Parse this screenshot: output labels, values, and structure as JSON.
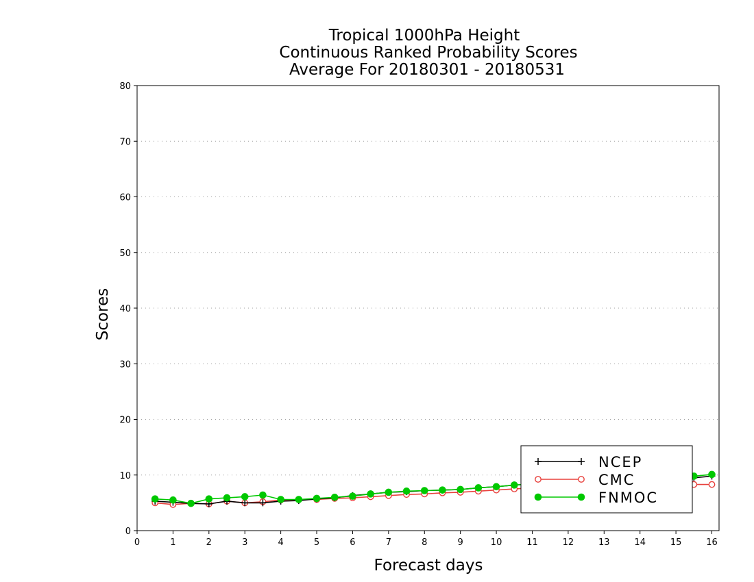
{
  "chart_data": {
    "type": "line",
    "title": [
      "Tropical 1000hPa Height",
      "Continuous Ranked Probability Scores",
      "Average For 20180301 - 20180531"
    ],
    "xlabel": "Forecast days",
    "ylabel": "Scores",
    "xlim": [
      0,
      16.2
    ],
    "ylim": [
      0,
      80
    ],
    "xticks": [
      0,
      1,
      2,
      3,
      4,
      5,
      6,
      7,
      8,
      9,
      10,
      11,
      12,
      13,
      14,
      15,
      16
    ],
    "yticks": [
      0,
      10,
      20,
      30,
      40,
      50,
      60,
      70,
      80
    ],
    "grid": "horizontal dotted",
    "legend_position": "bottom-right",
    "x": [
      0.5,
      1,
      1.5,
      2,
      2.5,
      3,
      3.5,
      4,
      4.5,
      5,
      5.5,
      6,
      6.5,
      7,
      7.5,
      8,
      8.5,
      9,
      9.5,
      10,
      10.5,
      11,
      11.5,
      12,
      12.5,
      13,
      13.5,
      14,
      14.5,
      15,
      15.5,
      16
    ],
    "series": [
      {
        "name": "NCEP",
        "color": "#000000",
        "marker": "plus",
        "values": [
          5.3,
          5.1,
          4.9,
          4.8,
          5.3,
          5.0,
          5.0,
          5.3,
          5.4,
          5.7,
          5.9,
          6.3,
          6.6,
          6.9,
          7.0,
          7.2,
          7.3,
          7.4,
          7.7,
          7.9,
          8.2,
          8.4,
          8.6,
          8.7,
          8.8,
          8.9,
          9.0,
          9.1,
          9.3,
          9.4,
          9.5,
          9.8
        ]
      },
      {
        "name": "CMC",
        "color": "#e8403c",
        "marker": "open-circle",
        "values": [
          5.0,
          4.7,
          4.9,
          4.8,
          5.3,
          5.0,
          5.2,
          5.5,
          5.6,
          5.6,
          5.8,
          5.9,
          6.1,
          6.3,
          6.5,
          6.6,
          6.8,
          6.9,
          7.1,
          7.3,
          7.5,
          7.7,
          7.8,
          7.9,
          8.0,
          8.1,
          8.1,
          8.2,
          8.2,
          8.3,
          8.3,
          8.3
        ]
      },
      {
        "name": "FNMOC",
        "color": "#00c800",
        "marker": "filled-circle",
        "values": [
          5.7,
          5.5,
          4.9,
          5.7,
          5.9,
          6.1,
          6.4,
          5.6,
          5.6,
          5.8,
          6.0,
          6.2,
          6.6,
          6.9,
          7.1,
          7.2,
          7.3,
          7.4,
          7.7,
          7.9,
          8.2,
          8.4,
          8.6,
          8.8,
          8.9,
          9.1,
          9.2,
          9.4,
          9.5,
          9.7,
          9.8,
          10.1
        ]
      }
    ]
  }
}
